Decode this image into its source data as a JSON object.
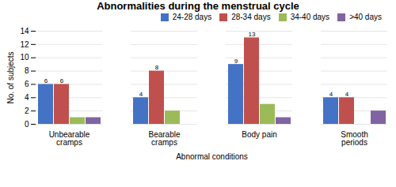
{
  "chart_data": {
    "type": "bar",
    "title": "Abnormalities during the menstrual cycle",
    "xlabel": "Abnormal conditions",
    "ylabel": "No. of subjects",
    "categories": [
      "Unbearable\ncramps",
      "Bearable\ncramps",
      "Body pain",
      "Smooth\nperiods"
    ],
    "series": [
      {
        "name": "24-28 days",
        "color": "#4472c4",
        "values": [
          6,
          4,
          9,
          4
        ],
        "data_labels": true
      },
      {
        "name": "28-34 days",
        "color": "#c0504d",
        "values": [
          6,
          8,
          13,
          4
        ],
        "data_labels": true
      },
      {
        "name": "34-40 days",
        "color": "#9bbb59",
        "values": [
          1,
          2,
          3,
          0
        ]
      },
      {
        "name": ">40 days",
        "color": "#8064a2",
        "values": [
          1,
          0,
          1,
          2
        ]
      }
    ],
    "ylim": [
      0,
      14
    ],
    "yticks": [
      0,
      2,
      4,
      6,
      8,
      10,
      12,
      14
    ],
    "grid": true,
    "legend": "upper right"
  }
}
